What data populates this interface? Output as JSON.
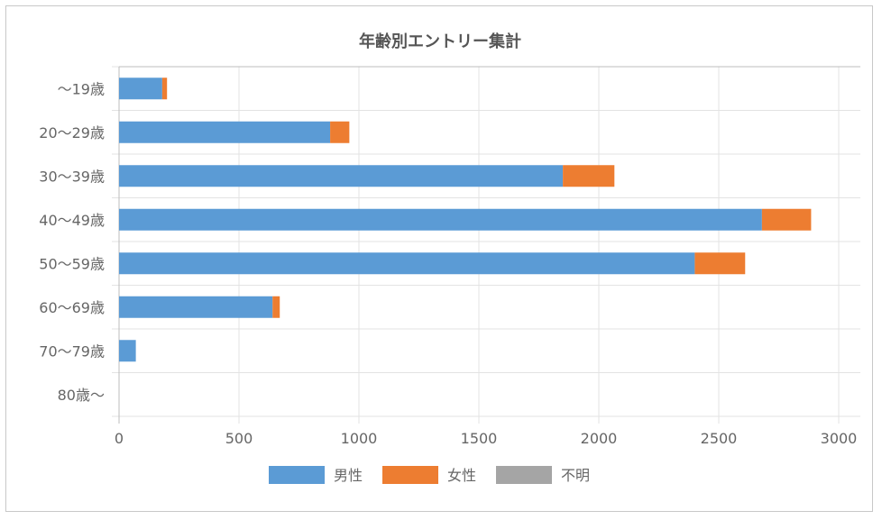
{
  "chart_data": {
    "type": "bar",
    "orientation": "horizontal",
    "stacked": true,
    "title": "年齢別エントリー集計",
    "categories": [
      "～19歳",
      "20～29歳",
      "30～39歳",
      "40～49歳",
      "50～59歳",
      "60～69歳",
      "70～79歳",
      "80歳～"
    ],
    "series": [
      {
        "name": "男性",
        "color": "#5b9bd5",
        "values": [
          180,
          880,
          1850,
          2680,
          2400,
          640,
          70,
          0
        ]
      },
      {
        "name": "女性",
        "color": "#ed7d31",
        "values": [
          20,
          80,
          215,
          205,
          210,
          30,
          0,
          0
        ]
      },
      {
        "name": "不明",
        "color": "#a5a5a5",
        "values": [
          0,
          0,
          0,
          0,
          0,
          0,
          0,
          0
        ]
      }
    ],
    "xlim": [
      0,
      3000
    ],
    "xticks": [
      0,
      500,
      1000,
      1500,
      2000,
      2500,
      3000
    ],
    "grid": true,
    "legend_position": "bottom"
  }
}
